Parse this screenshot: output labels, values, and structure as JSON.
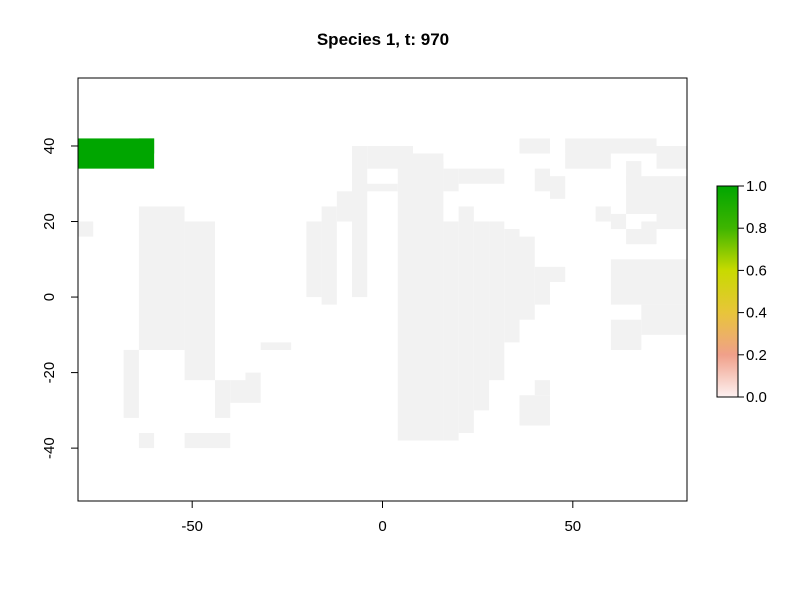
{
  "chart_data": {
    "type": "heatmap",
    "title": "Species 1, t: 970",
    "xlabel": "",
    "ylabel": "",
    "xlim": [
      -80,
      80
    ],
    "ylim": [
      -54,
      58
    ],
    "x_ticks": [
      -50,
      0,
      50
    ],
    "y_ticks": [
      -40,
      -20,
      0,
      20,
      40
    ],
    "cell_size_deg": 4,
    "land_fill_value": 0,
    "colorbar": {
      "range": [
        0,
        1
      ],
      "ticks": [
        "0.0",
        "0.2",
        "0.4",
        "0.6",
        "0.8",
        "1.0"
      ],
      "colors": [
        "#fdf1f1",
        "#f0a08a",
        "#e8c53a",
        "#c8da00",
        "#3fb500",
        "#00a600"
      ]
    },
    "colors": {
      "land": "#f2f2f2",
      "occupied": "#00a600",
      "background": "#ffffff"
    },
    "land_cells": [
      [
        -80,
        16,
        -76,
        20
      ],
      [
        -68,
        -14,
        -64,
        -32
      ],
      [
        -64,
        -36,
        -60,
        -40
      ],
      [
        -64,
        -14,
        -52,
        24
      ],
      [
        -52,
        -36,
        -40,
        -40
      ],
      [
        -52,
        -22,
        -44,
        20
      ],
      [
        -44,
        -22,
        -40,
        -32
      ],
      [
        -40,
        -22,
        -36,
        -28
      ],
      [
        -36,
        -20,
        -32,
        -28
      ],
      [
        -32,
        -14,
        -24,
        -12
      ],
      [
        -20,
        0,
        -16,
        20
      ],
      [
        -16,
        24,
        -12,
        -2
      ],
      [
        -12,
        28,
        -8,
        20
      ],
      [
        -8,
        40,
        -4,
        0
      ],
      [
        -8,
        30,
        4,
        28
      ],
      [
        4,
        -38,
        16,
        36
      ],
      [
        16,
        -38,
        20,
        20
      ],
      [
        20,
        -36,
        24,
        24
      ],
      [
        24,
        -30,
        28,
        20
      ],
      [
        28,
        -22,
        32,
        20
      ],
      [
        32,
        -12,
        36,
        18
      ],
      [
        36,
        -6,
        40,
        16
      ],
      [
        40,
        -2,
        44,
        8
      ],
      [
        44,
        4,
        48,
        8
      ],
      [
        -4,
        40,
        8,
        34
      ],
      [
        8,
        38,
        16,
        34
      ],
      [
        16,
        34,
        20,
        28
      ],
      [
        20,
        34,
        32,
        30
      ],
      [
        36,
        42,
        44,
        38
      ],
      [
        40,
        34,
        44,
        28
      ],
      [
        44,
        32,
        48,
        26
      ],
      [
        48,
        42,
        72,
        38
      ],
      [
        48,
        38,
        60,
        34
      ],
      [
        56,
        24,
        60,
        20
      ],
      [
        60,
        22,
        64,
        18
      ],
      [
        64,
        32,
        80,
        22
      ],
      [
        64,
        18,
        72,
        14
      ],
      [
        68,
        20,
        72,
        18
      ],
      [
        72,
        40,
        80,
        34
      ],
      [
        64,
        36,
        68,
        30
      ],
      [
        72,
        22,
        80,
        18
      ],
      [
        60,
        10,
        80,
        -2
      ],
      [
        68,
        -2,
        80,
        -10
      ],
      [
        60,
        -6,
        68,
        -14
      ],
      [
        40,
        -22,
        44,
        -26
      ],
      [
        36,
        -26,
        44,
        -34
      ]
    ],
    "occupied_cells": [
      [
        -80,
        42,
        -60,
        34
      ],
      [
        -60,
        42,
        -64,
        38
      ]
    ]
  }
}
